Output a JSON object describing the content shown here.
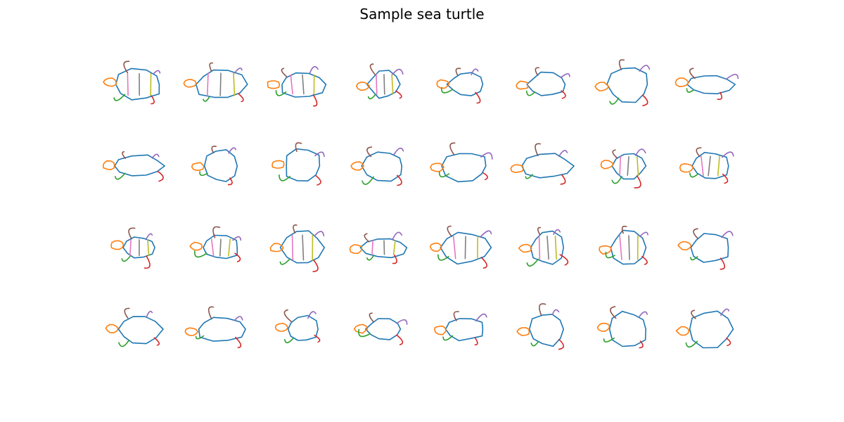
{
  "figure": {
    "title": "Sample sea turtle",
    "grid": {
      "rows": 4,
      "cols": 8
    },
    "stroke_palette": [
      "#1f77b4",
      "#ff7f0e",
      "#2ca02c",
      "#d62728",
      "#9467bd",
      "#8c564b",
      "#e377c2",
      "#7f7f7f",
      "#bcbd22",
      "#17becf"
    ]
  }
}
